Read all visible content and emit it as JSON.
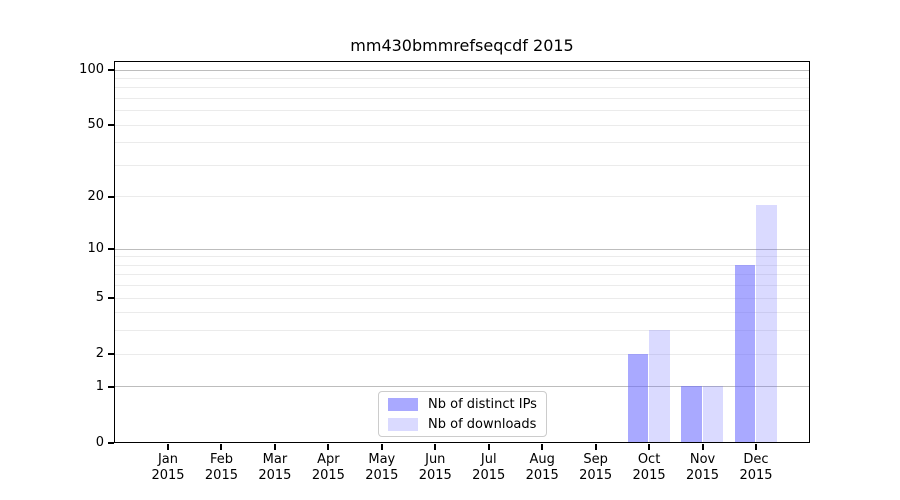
{
  "figure": {
    "title": "mm430bmmrefseqcdf 2015"
  },
  "chart_data": {
    "type": "bar",
    "title": "mm430bmmrefseqcdf 2015",
    "categories": [
      "Jan",
      "Feb",
      "Mar",
      "Apr",
      "May",
      "Jun",
      "Jul",
      "Aug",
      "Sep",
      "Oct",
      "Nov",
      "Dec"
    ],
    "x_year": "2015",
    "series": [
      {
        "name": "Nb of distinct IPs",
        "color": "rgba(102,102,255,0.56)",
        "values": [
          0,
          0,
          0,
          0,
          0,
          0,
          0,
          0,
          0,
          2,
          1,
          8
        ]
      },
      {
        "name": "Nb of downloads",
        "color": "rgba(102,102,255,0.24)",
        "values": [
          0,
          0,
          0,
          0,
          0,
          0,
          0,
          0,
          0,
          3,
          1,
          18
        ]
      }
    ],
    "xlabel": "",
    "ylabel": "",
    "yscale": "log1p",
    "ylim": [
      0,
      112
    ],
    "y_ticks": [
      0,
      1,
      2,
      5,
      10,
      20,
      50,
      100
    ],
    "y_grid_major": [
      1,
      10,
      100
    ],
    "y_grid_minor": [
      2,
      3,
      4,
      5,
      6,
      7,
      8,
      9,
      20,
      30,
      40,
      50,
      60,
      70,
      80,
      90
    ],
    "grid": true,
    "legend_position": "lower center"
  }
}
